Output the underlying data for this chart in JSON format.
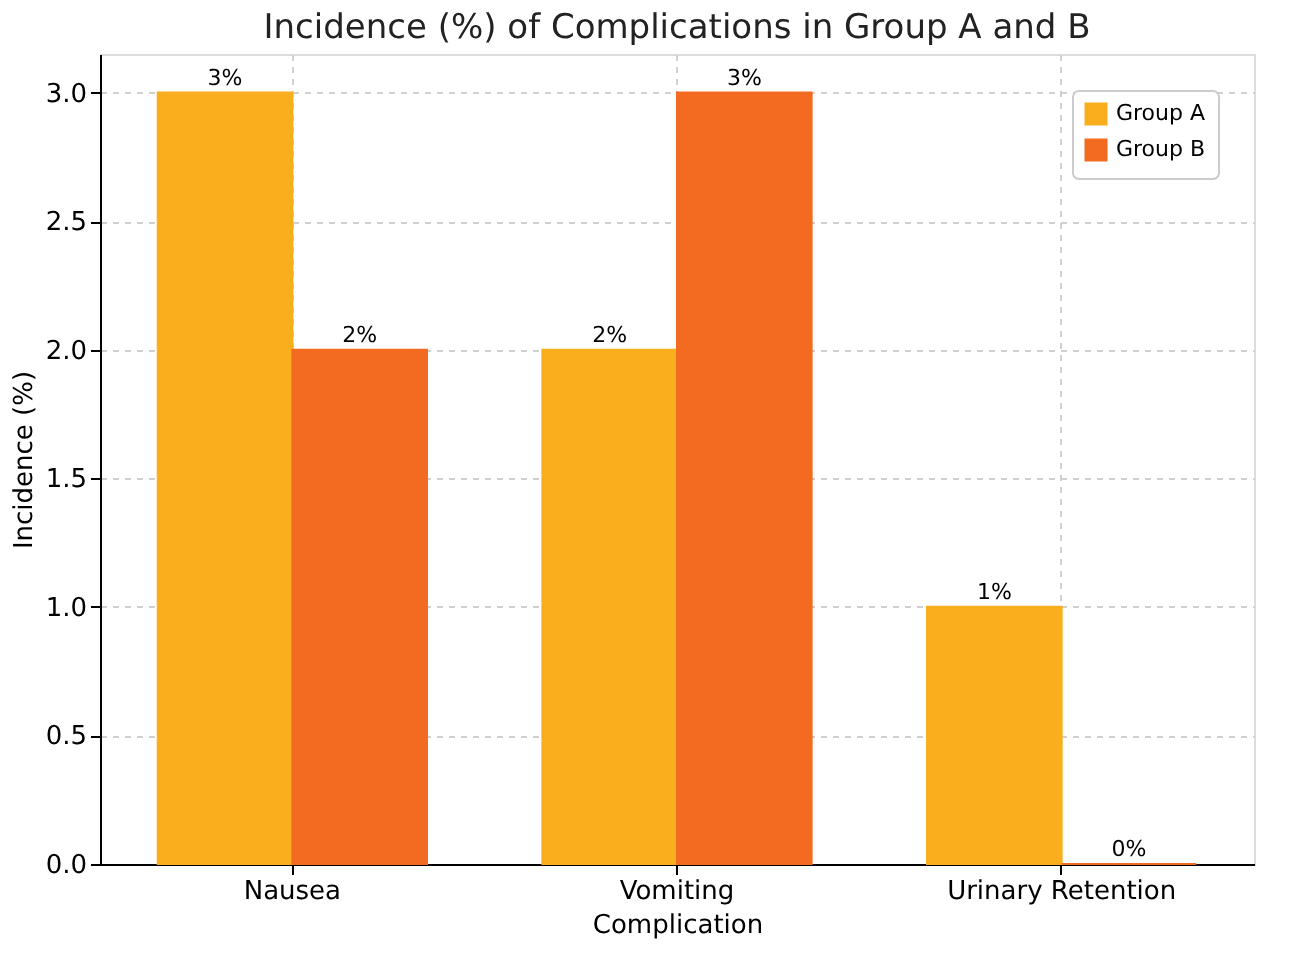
{
  "chart_data": {
    "type": "bar",
    "title": "Incidence (%) of Complications in Group A and B",
    "xlabel": "Complication",
    "ylabel": "Incidence (%)",
    "categories": [
      "Nausea",
      "Vomiting",
      "Urinary Retention"
    ],
    "series": [
      {
        "name": "Group A",
        "color": "#f9ae1e",
        "values": [
          3,
          2,
          1
        ],
        "value_labels": [
          "3%",
          "2%",
          "1%"
        ]
      },
      {
        "name": "Group B",
        "color": "#f26b21",
        "values": [
          2,
          3,
          0
        ],
        "value_labels": [
          "2%",
          "3%",
          "0%"
        ]
      }
    ],
    "ylim": [
      0,
      3.15
    ],
    "yticks": [
      {
        "value": 0,
        "label": "0.0"
      },
      0.5,
      {
        "value": 1,
        "label": "1.0"
      },
      1.5,
      {
        "value": 2,
        "label": "2.0"
      },
      2.5,
      {
        "value": 3,
        "label": "3.0"
      }
    ],
    "grid": true,
    "legend": "top right"
  }
}
